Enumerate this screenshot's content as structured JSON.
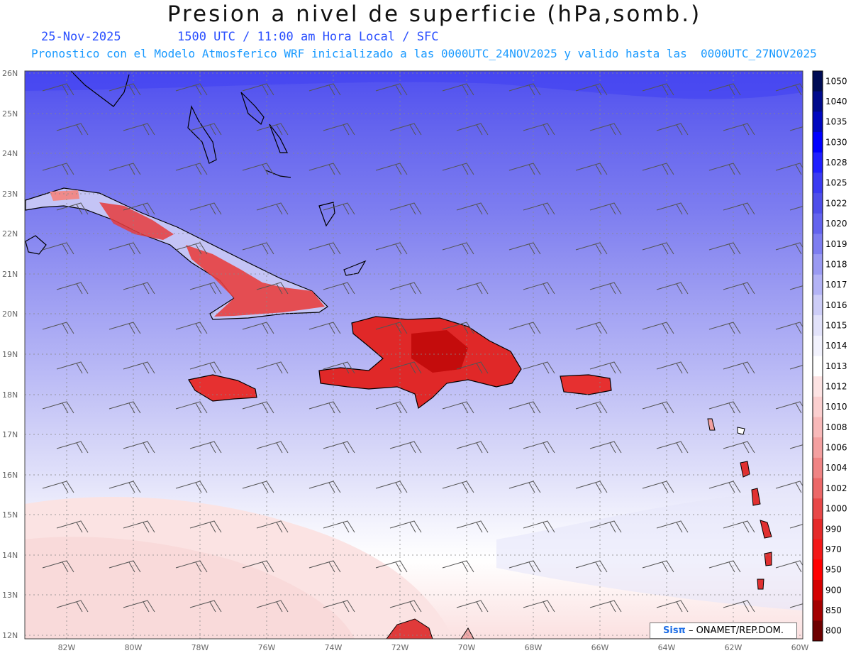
{
  "header": {
    "title": "Presion a nivel de superficie (hPa,somb.)",
    "date": "25-Nov-2025",
    "time_info": "1500 UTC / 11:00 am Hora Local / SFC",
    "model_info": "Pronostico con el Modelo Atmosferico WRF inicializado a las 0000UTC_24NOV2025 y valido hasta las  0000UTC_27NOV2025"
  },
  "map": {
    "lon_labels": [
      "82W",
      "80W",
      "78W",
      "76W",
      "74W",
      "72W",
      "70W",
      "68W",
      "66W",
      "64W",
      "62W",
      "60W"
    ],
    "lat_labels": [
      "26N",
      "25N",
      "24N",
      "23N",
      "22N",
      "21N",
      "20N",
      "19N",
      "18N",
      "17N",
      "16N",
      "15N",
      "14N",
      "13N",
      "12N"
    ]
  },
  "colorbar": {
    "levels": [
      "1050",
      "1040",
      "1035",
      "1030",
      "1028",
      "1025",
      "1022",
      "1020",
      "1019",
      "1018",
      "1017",
      "1016",
      "1015",
      "1014",
      "1013",
      "1012",
      "1010",
      "1008",
      "1006",
      "1004",
      "1002",
      "1000",
      "990",
      "970",
      "950",
      "900",
      "850",
      "800"
    ],
    "colors": [
      "#000c55",
      "#000b8c",
      "#0008bf",
      "#0000ff",
      "#1f1fff",
      "#3b3bf2",
      "#4f4fea",
      "#6464ee",
      "#7e7ef0",
      "#9a9af2",
      "#b3b3f5",
      "#cdcdf7",
      "#e2e2fa",
      "#f2f2fd",
      "#ffffff",
      "#fde3e3",
      "#fbcfcf",
      "#f8b9b9",
      "#f4a0a0",
      "#f08484",
      "#ec6868",
      "#e84848",
      "#e52a2a",
      "#f31818",
      "#ff0000",
      "#d40000",
      "#a40000",
      "#6e0000"
    ]
  },
  "credit": {
    "brand": "Sisπ",
    "text": " – ONAMET/REP.DOM."
  }
}
